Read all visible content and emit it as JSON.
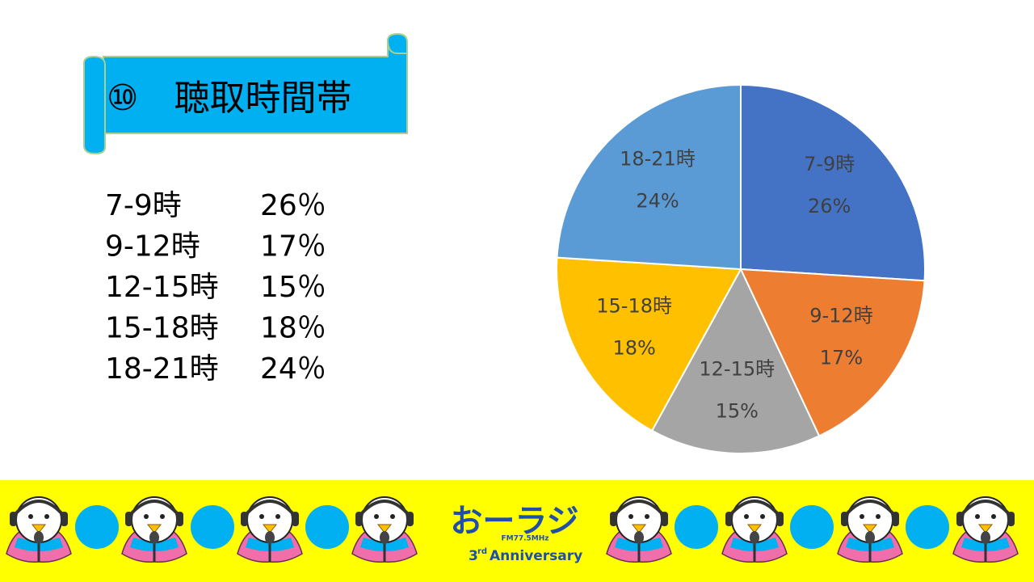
{
  "title": "⑩　聴取時間帯",
  "list": [
    {
      "label": "7-9時",
      "value": "26％"
    },
    {
      "label": "9-12時",
      "value": "17％"
    },
    {
      "label": "12-15時",
      "value": "15％"
    },
    {
      "label": "15-18時",
      "value": "18％"
    },
    {
      "label": "18-21時",
      "value": "24％"
    }
  ],
  "chart_data": {
    "type": "pie",
    "categories": [
      "7-9時",
      "9-12時",
      "12-15時",
      "15-18時",
      "18-21時"
    ],
    "values": [
      26,
      17,
      15,
      18,
      24
    ],
    "value_labels": [
      "26%",
      "17%",
      "15%",
      "18%",
      "24%"
    ],
    "colors": [
      "#4472c4",
      "#ed7d31",
      "#a5a5a5",
      "#ffc000",
      "#5b9bd5"
    ]
  },
  "footer": {
    "logo": "おーラジ",
    "frequency": "FM77.5MHz",
    "anniversary_number": "3",
    "anniversary_suffix": "rd",
    "anniversary_text": "Anniversary"
  }
}
